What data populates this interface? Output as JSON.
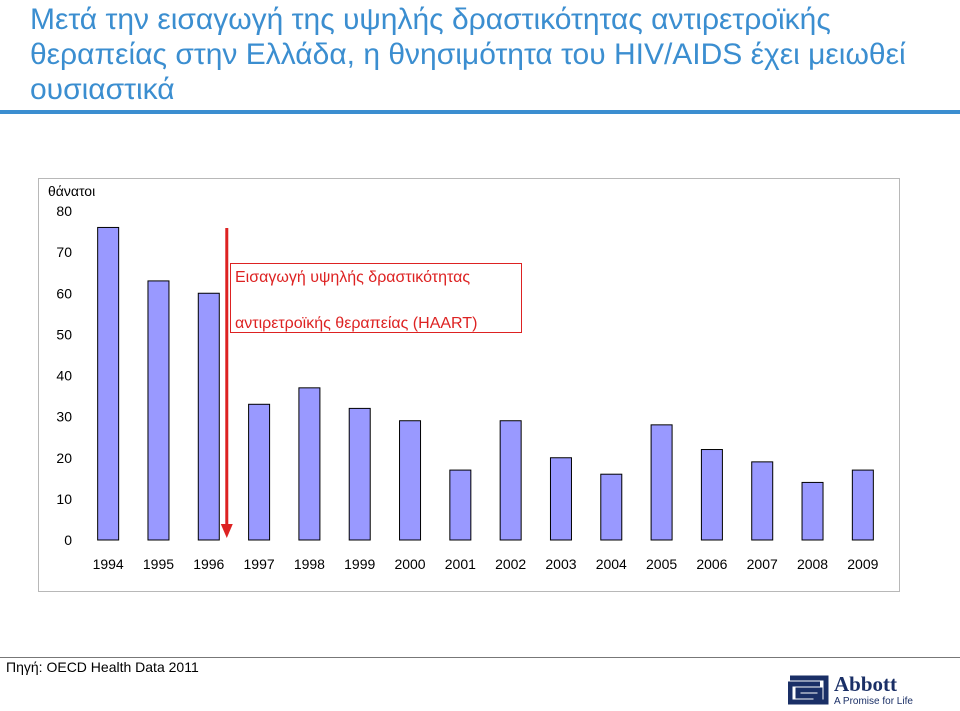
{
  "title": "Μετά την εισαγωγή της υψηλής δραστικότητας αντιρετροϊκής θεραπείας στην Ελλάδα, η θνησιμότητα του HIV/AIDS έχει μειωθεί ουσιαστικά",
  "annotation": {
    "line1": "Εισαγωγή υψηλής δραστικότητας",
    "line2": "αντιρετροϊκής θεραπείας (HAART)"
  },
  "source": "Πηγή: OECD Health Data 2011",
  "logo": {
    "name": "Abbott",
    "tagline": "A Promise for Life"
  },
  "chart_data": {
    "type": "bar",
    "ylabel": "θάνατοι",
    "categories": [
      "1994",
      "1995",
      "1996",
      "1997",
      "1998",
      "1999",
      "2000",
      "2001",
      "2002",
      "2003",
      "2004",
      "2005",
      "2006",
      "2007",
      "2008",
      "2009"
    ],
    "values": [
      76,
      63,
      60,
      33,
      37,
      32,
      29,
      17,
      29,
      20,
      16,
      28,
      22,
      19,
      14,
      17
    ],
    "ylim": [
      0,
      80
    ],
    "yticks": [
      0,
      10,
      20,
      30,
      40,
      50,
      60,
      70,
      80
    ],
    "grid": false,
    "marker": {
      "category": "1996",
      "direction": "down"
    },
    "colors": {
      "bar": "#9999ff",
      "bar_border": "#000000",
      "marker": "#dd2222",
      "title": "#3b8ed0"
    }
  }
}
